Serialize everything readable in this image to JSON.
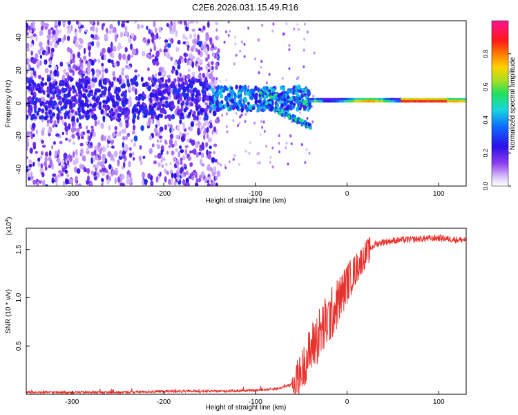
{
  "title": "C2E6.2026.031.15.49.R16",
  "colors": {
    "snr_line": "#e8322d",
    "spectrogram_low": "#d9c2f5",
    "spectrogram_mid": "#5a18e0",
    "spectrogram_high": "#ff2a1a"
  },
  "chart_data": [
    {
      "type": "heatmap",
      "xlabel": "Height of straight line (km)",
      "ylabel": "Frequency (Hz)",
      "xlim": [
        -350,
        130
      ],
      "ylim": [
        -50,
        50
      ],
      "xticks": [
        -300,
        -200,
        -100,
        0,
        100
      ],
      "yticks": [
        -40,
        -20,
        0,
        20,
        40
      ],
      "colorbar": {
        "label": "Normalized spectral amplitude",
        "range": [
          0.0,
          1.0
        ],
        "ticks": [
          0.0,
          0.2,
          0.4,
          0.6,
          0.8
        ],
        "tick_labels": [
          "0.0",
          "0.2",
          "0.4",
          "0.6",
          "0.8"
        ],
        "colormap": "rainbow (violet → blue → cyan → green → yellow → red → magenta)"
      },
      "features": [
        {
          "x_range": [
            -350,
            -145
          ],
          "frequency_spread": [
            -50,
            50
          ],
          "amplitude": "0.1-0.3 scattered noise"
        },
        {
          "x_range": [
            -145,
            -40
          ],
          "frequency_center": [
            0,
            5
          ],
          "amplitude": "0.3-0.55 broadening band"
        },
        {
          "x_range": [
            -40,
            130
          ],
          "frequency_center": 2,
          "amplitude": "0.5-0.95 narrow tone"
        }
      ]
    },
    {
      "type": "line",
      "xlabel": "Height of straight line (km)",
      "ylabel": "SNR (10 * v/v)",
      "y_multiplier": "(x10^4)",
      "xlim": [
        -350,
        130
      ],
      "ylim": [
        0,
        1.72
      ],
      "xticks": [
        -300,
        -200,
        -100,
        0,
        100
      ],
      "yticks": [
        0.5,
        1.0,
        1.5
      ],
      "ytick_labels": [
        "0.5",
        "1.0",
        "1.5"
      ],
      "series": [
        {
          "x": [
            -350,
            -300,
            -250,
            -200,
            -150,
            -100,
            -75,
            -60,
            -50,
            -45,
            -40,
            -35,
            -30,
            -25,
            -20,
            -15,
            -10,
            -5,
            0,
            10,
            20,
            30,
            40,
            60,
            80,
            100,
            120,
            130
          ],
          "y": [
            0.02,
            0.02,
            0.02,
            0.03,
            0.03,
            0.04,
            0.06,
            0.1,
            0.22,
            0.35,
            0.45,
            0.55,
            0.62,
            0.7,
            0.78,
            0.86,
            0.95,
            1.05,
            1.15,
            1.3,
            1.45,
            1.55,
            1.58,
            1.6,
            1.61,
            1.62,
            1.6,
            1.6
          ]
        }
      ]
    }
  ]
}
